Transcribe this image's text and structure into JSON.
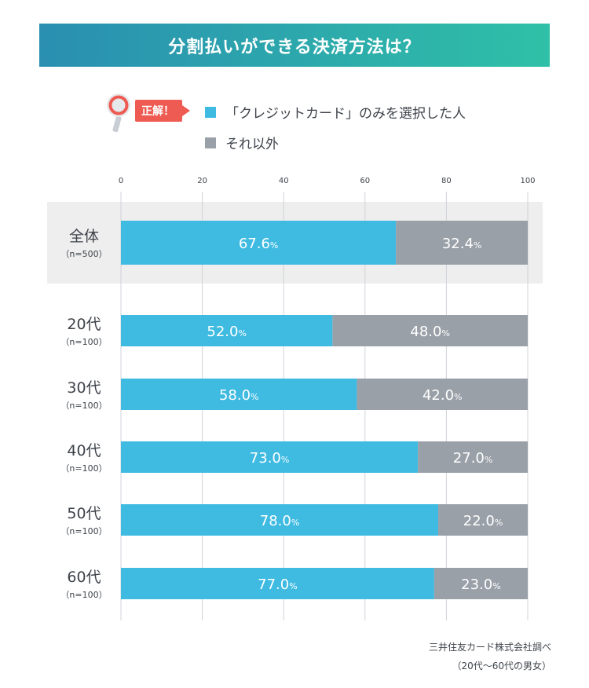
{
  "title": "分割払いができる決済方法は？",
  "legend": {
    "answer_badge": "正解！",
    "items": [
      {
        "label": "「クレジットカード」のみを選択した人",
        "color": "#3fbbe2"
      },
      {
        "label": "それ以外",
        "color": "#9aa0a8"
      }
    ]
  },
  "chart_data": {
    "type": "bar",
    "orientation": "horizontal",
    "stacked": true,
    "xlim": [
      0,
      100
    ],
    "ticks": [
      0,
      20,
      40,
      60,
      80,
      100
    ],
    "grid": true,
    "unit": "%",
    "categories": [
      {
        "label": "全体",
        "sub": "（n=500）",
        "highlight": true
      },
      {
        "label": "20代",
        "sub": "（n=100）"
      },
      {
        "label": "30代",
        "sub": "（n=100）"
      },
      {
        "label": "40代",
        "sub": "（n=100）"
      },
      {
        "label": "50代",
        "sub": "（n=100）"
      },
      {
        "label": "60代",
        "sub": "（n=100）"
      }
    ],
    "series": [
      {
        "name": "「クレジットカード」のみを選択した人",
        "color": "#3fbbe2",
        "values": [
          67.6,
          52.0,
          58.0,
          73.0,
          78.0,
          77.0
        ]
      },
      {
        "name": "それ以外",
        "color": "#9aa0a8",
        "values": [
          32.4,
          48.0,
          42.0,
          27.0,
          22.0,
          23.0
        ]
      }
    ]
  },
  "footer": {
    "source": "三井住友カード株式会社調べ",
    "note": "（20代〜60代の男女）"
  }
}
